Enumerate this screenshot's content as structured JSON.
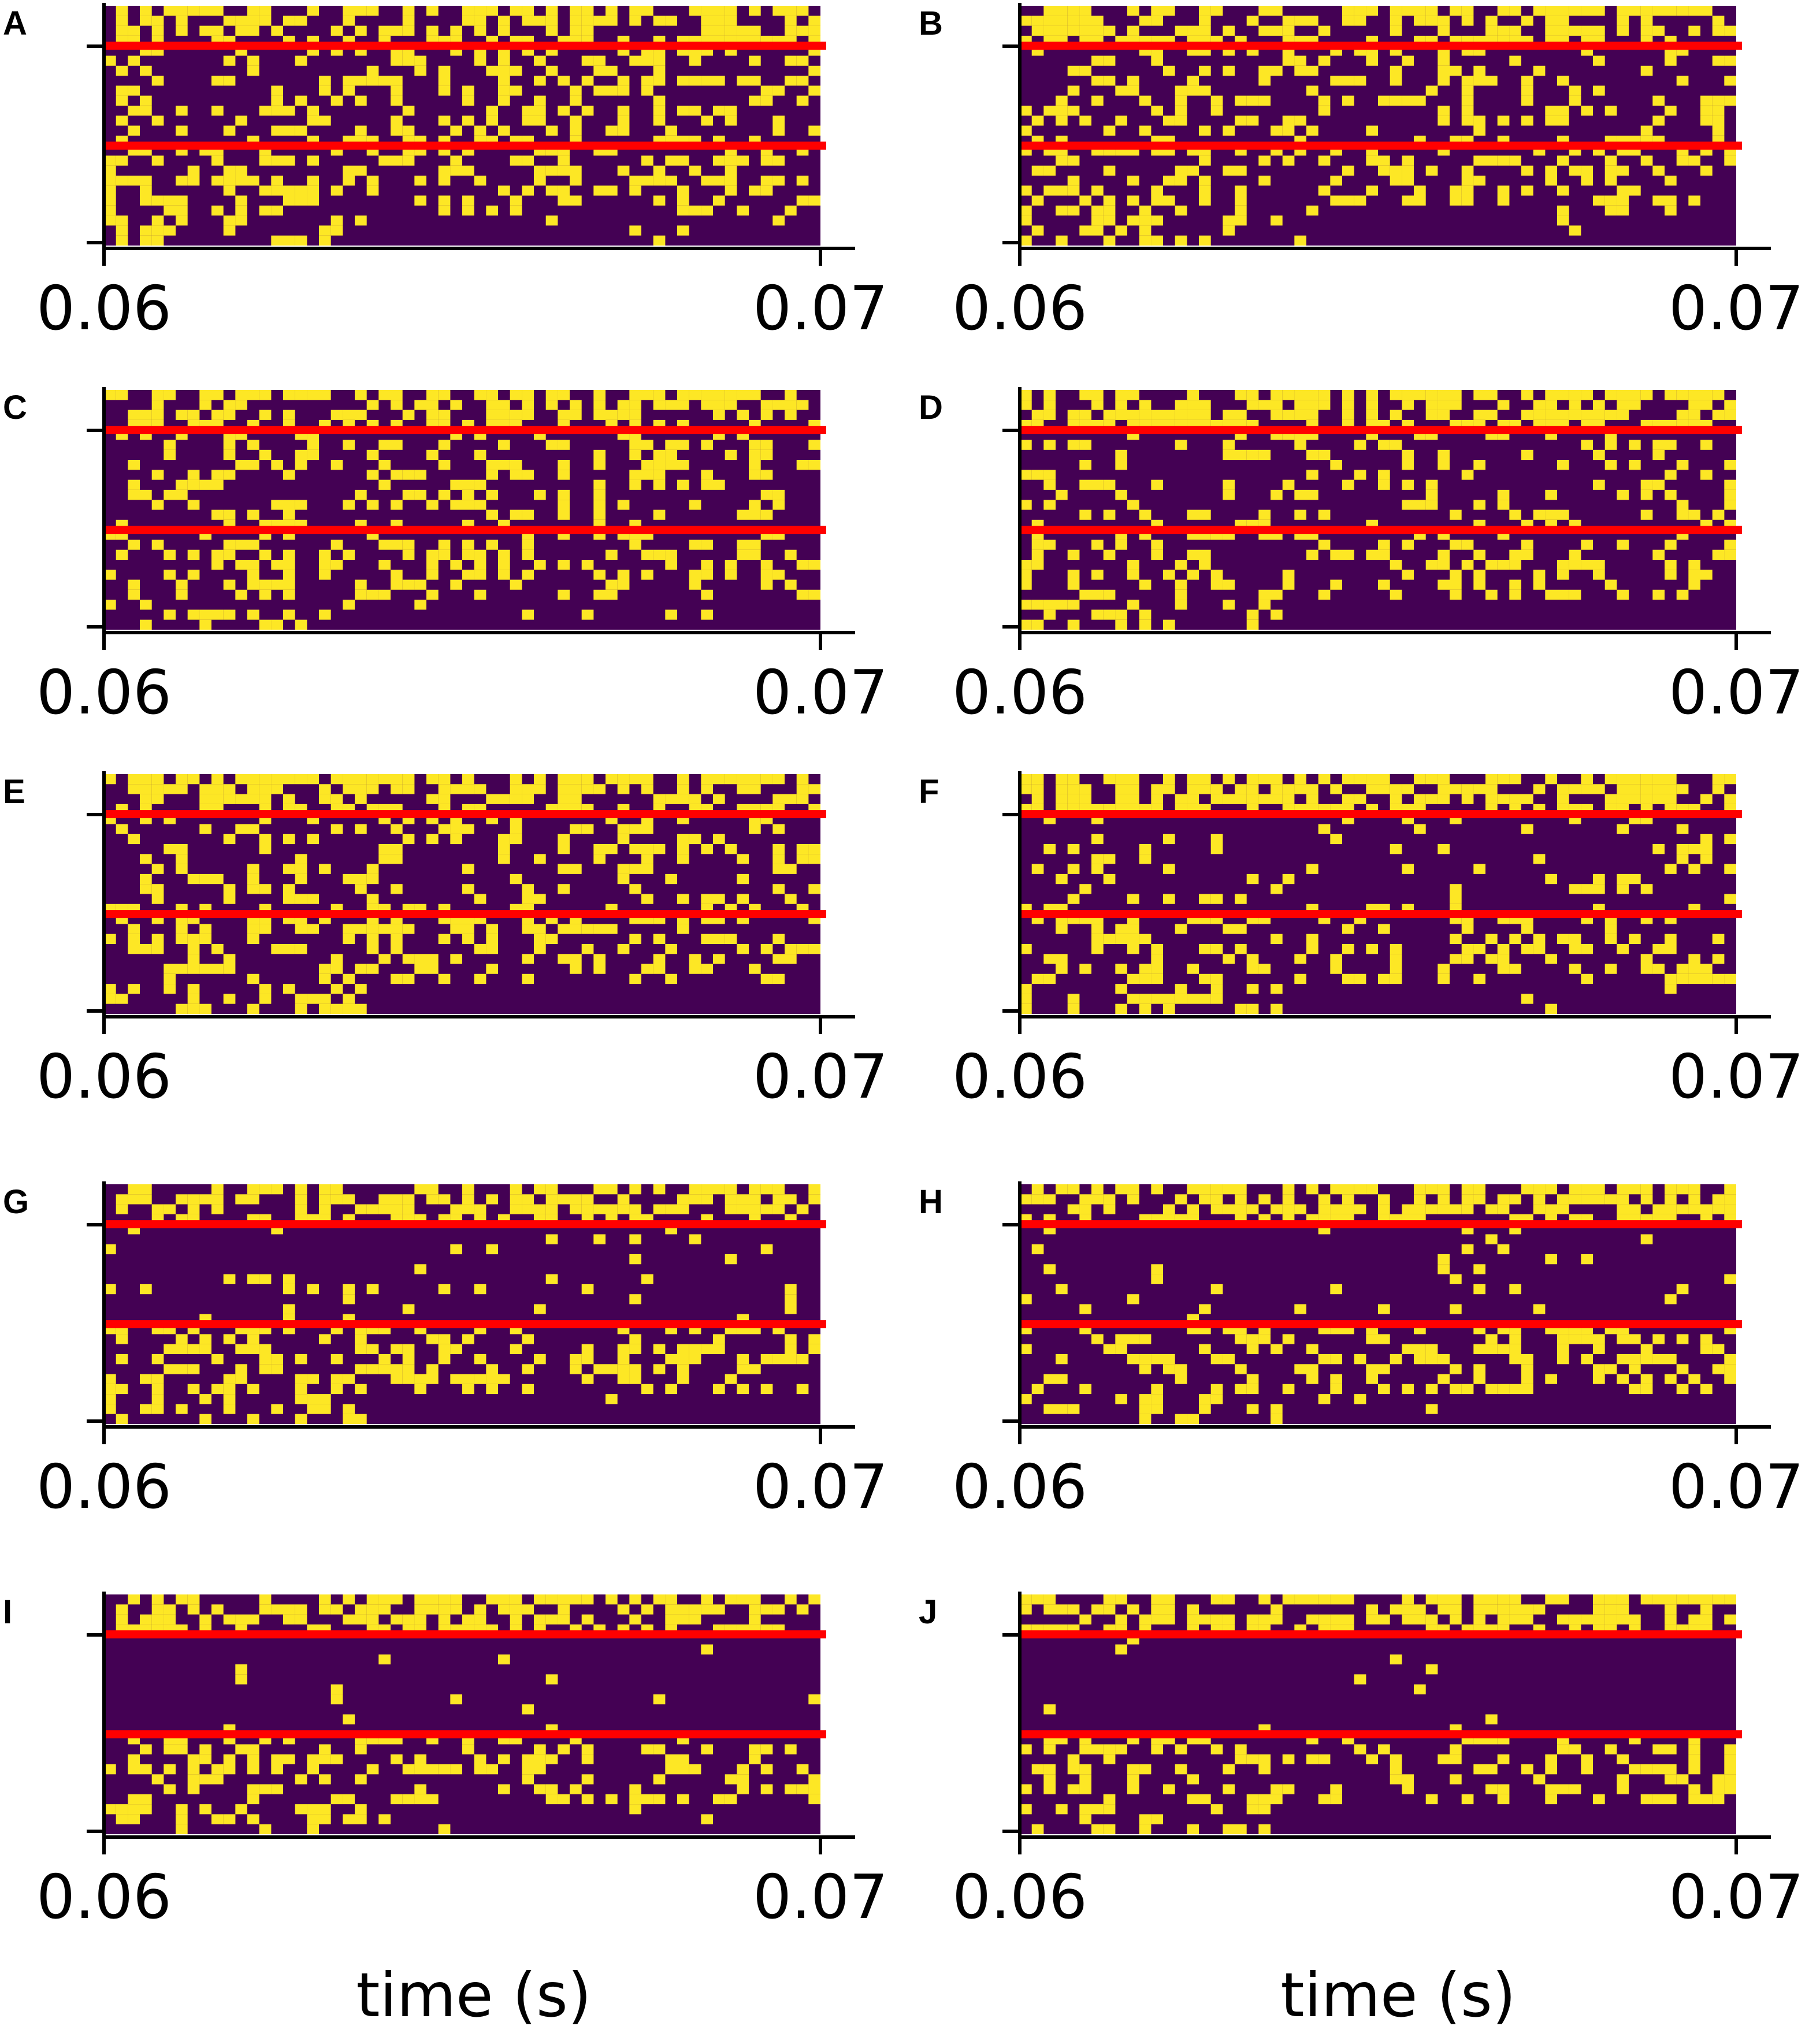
{
  "figure": {
    "xlabel_left": "time (s)",
    "xlabel_right": "time (s)"
  },
  "colors": {
    "background": "#440154",
    "spike": "#fde725",
    "threshold": "#ff0000"
  },
  "chart_data": [
    {
      "panel": "A",
      "type": "heatmap",
      "xlim": [
        0.06,
        0.07
      ],
      "xticks": [
        "0.06",
        "0.07"
      ],
      "density": {
        "top": 0.55,
        "middle": 0.3,
        "bottom": 0.32
      }
    },
    {
      "panel": "B",
      "type": "heatmap",
      "xlim": [
        0.06,
        0.07
      ],
      "xticks": [
        "0.06",
        "0.07"
      ],
      "density": {
        "top": 0.55,
        "middle": 0.28,
        "bottom": 0.32
      }
    },
    {
      "panel": "C",
      "type": "heatmap",
      "xlim": [
        0.06,
        0.07
      ],
      "xticks": [
        "0.06",
        "0.07"
      ],
      "density": {
        "top": 0.55,
        "middle": 0.27,
        "bottom": 0.32
      }
    },
    {
      "panel": "D",
      "type": "heatmap",
      "xlim": [
        0.06,
        0.07
      ],
      "xticks": [
        "0.06",
        "0.07"
      ],
      "density": {
        "top": 0.55,
        "middle": 0.22,
        "bottom": 0.32
      }
    },
    {
      "panel": "E",
      "type": "heatmap",
      "xlim": [
        0.06,
        0.07
      ],
      "xticks": [
        "0.06",
        "0.07"
      ],
      "density": {
        "top": 0.55,
        "middle": 0.25,
        "bottom": 0.32
      }
    },
    {
      "panel": "F",
      "type": "heatmap",
      "xlim": [
        0.06,
        0.07
      ],
      "xticks": [
        "0.06",
        "0.07"
      ],
      "density": {
        "top": 0.55,
        "middle": 0.12,
        "bottom": 0.32
      }
    },
    {
      "panel": "G",
      "type": "heatmap",
      "xlim": [
        0.06,
        0.07
      ],
      "xticks": [
        "0.06",
        "0.07"
      ],
      "density": {
        "top": 0.55,
        "middle": 0.08,
        "bottom": 0.32
      }
    },
    {
      "panel": "H",
      "type": "heatmap",
      "xlim": [
        0.06,
        0.07
      ],
      "xticks": [
        "0.06",
        "0.07"
      ],
      "density": {
        "top": 0.55,
        "middle": 0.06,
        "bottom": 0.32
      }
    },
    {
      "panel": "I",
      "type": "heatmap",
      "xlim": [
        0.06,
        0.07
      ],
      "xticks": [
        "0.06",
        "0.07"
      ],
      "density": {
        "top": 0.55,
        "middle": 0.03,
        "bottom": 0.32
      }
    },
    {
      "panel": "J",
      "type": "heatmap",
      "xlim": [
        0.06,
        0.07
      ],
      "xticks": [
        "0.06",
        "0.07"
      ],
      "density": {
        "top": 0.55,
        "middle": 0.015,
        "bottom": 0.32
      }
    }
  ]
}
